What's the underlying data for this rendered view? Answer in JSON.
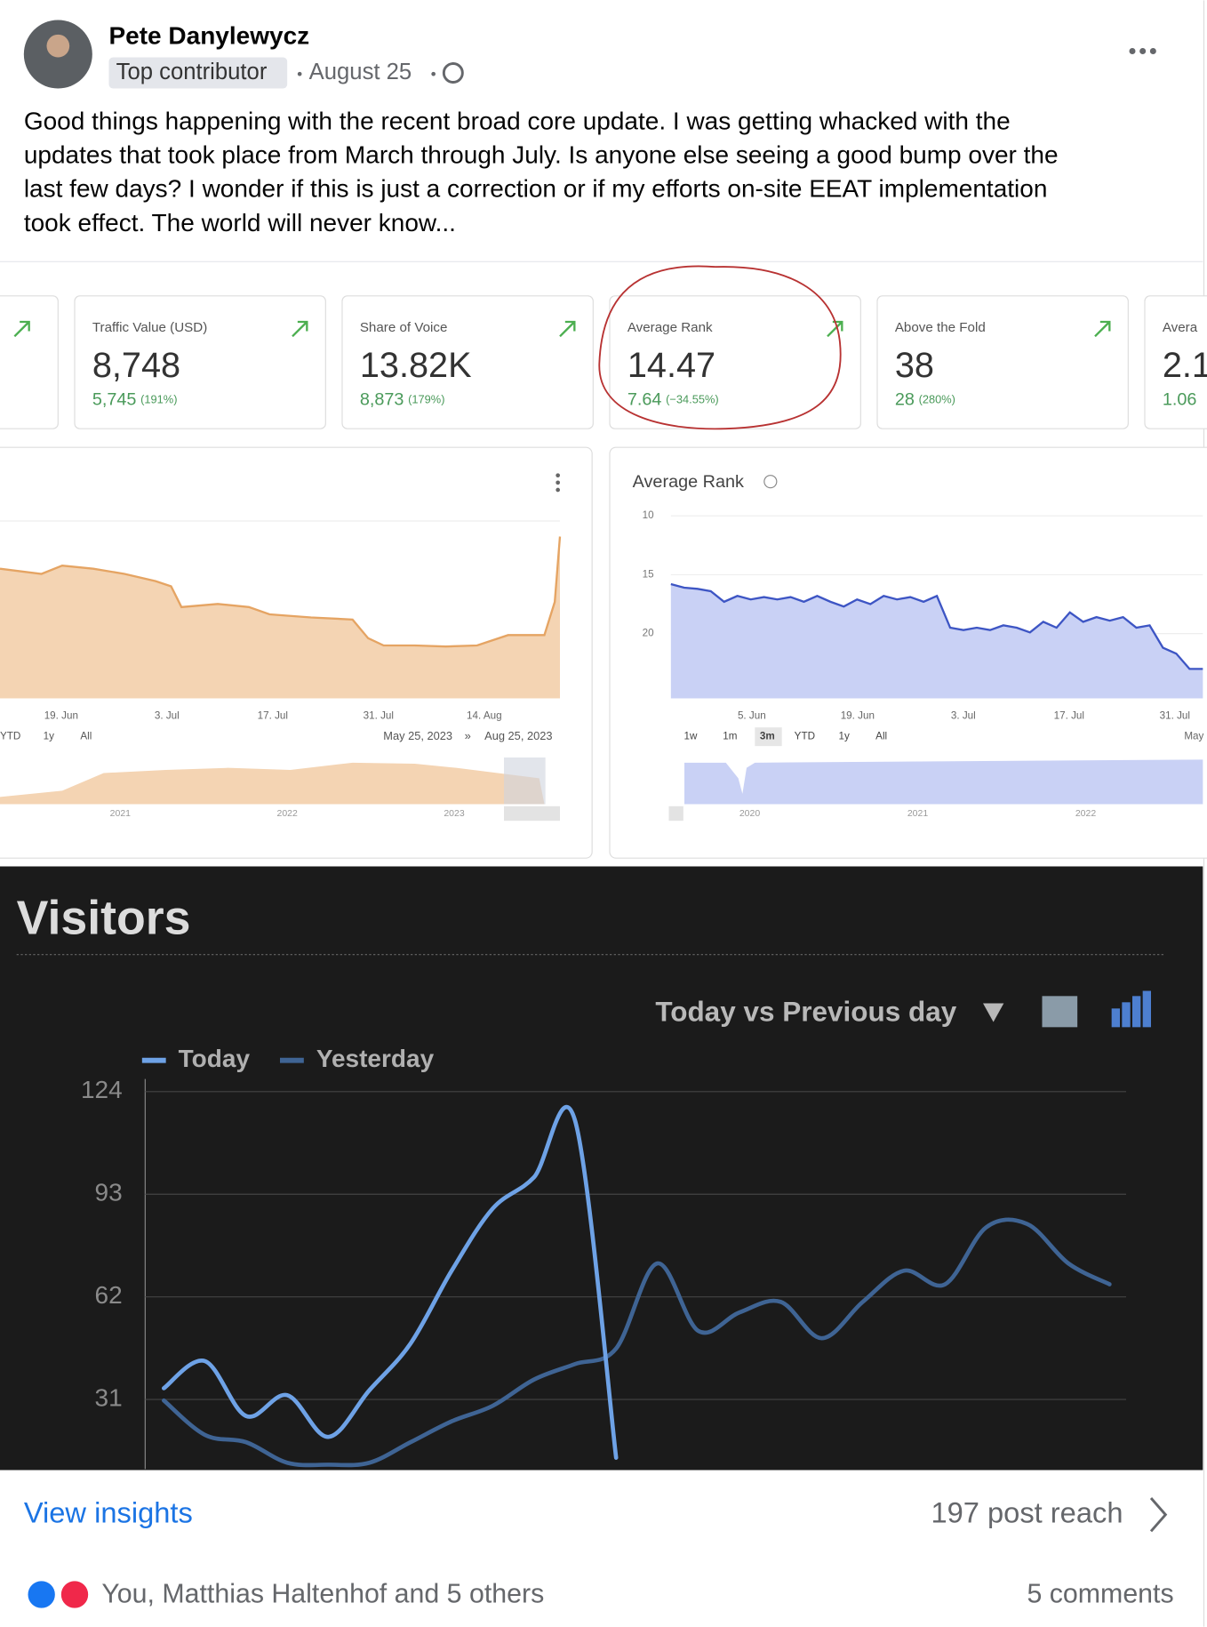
{
  "post": {
    "author": "Pete Danylewycz",
    "badge": "Top contributor",
    "date": "August 25",
    "lines": [
      "Good things happening with the recent broad core update. I was getting whacked with the",
      "updates that took place from March through July. Is anyone else seeing a good bump over the",
      "last few days? I wonder if this is just a correction or if my efforts on-site EEAT implementation",
      "took effect. The world will never know..."
    ]
  },
  "metrics": [
    {
      "label": "Traffic Value (USD)",
      "value": "8,748",
      "change": "5,745",
      "change_pct": "(191%)"
    },
    {
      "label": "Share of Voice",
      "value": "13.82K",
      "change": "8,873",
      "change_pct": "(179%)"
    },
    {
      "label": "Average Rank",
      "value": "14.47",
      "change": "7.64",
      "change_pct": "(−34.55%)"
    },
    {
      "label": "Above the Fold",
      "value": "38",
      "change": "28",
      "change_pct": "(280%)"
    },
    {
      "label": "Avera",
      "value": "2.1",
      "change": "1.06"
    }
  ],
  "left_panel": {
    "x_labels": [
      "19. Jun",
      "3. Jul",
      "17. Jul",
      "31. Jul",
      "14. Aug"
    ],
    "ranges": [
      "YTD",
      "1y",
      "All"
    ],
    "date_from": "May 25, 2023",
    "date_sep": "»",
    "date_to": "Aug 25, 2023",
    "years": [
      "2021",
      "2022",
      "2023"
    ]
  },
  "right_panel": {
    "ranges": [
      "1w",
      "1m",
      "3m",
      "YTD",
      "1y",
      "All"
    ],
    "years": [
      "2020",
      "2021",
      "2022"
    ],
    "clipped_label": "May"
  },
  "chart_data": [
    {
      "type": "area",
      "title": "Average Rank",
      "color": "#3d55c4",
      "fill": "#c9d1f5",
      "x_labels": [
        "5. Jun",
        "19. Jun",
        "3. Jul",
        "17. Jul",
        "31. Jul"
      ],
      "values": [
        15.8,
        16.1,
        16.2,
        16.4,
        17.3,
        16.8,
        17.1,
        16.9,
        17.1,
        16.9,
        17.3,
        16.8,
        17.3,
        17.7,
        17.1,
        17.5,
        16.8,
        17.1,
        16.9,
        17.3,
        16.8,
        19.5,
        19.7,
        19.5,
        19.7,
        19.3,
        19.5,
        19.9,
        19.0,
        19.5,
        18.2,
        19.0,
        18.6,
        18.9,
        18.6,
        19.5,
        19.3,
        21.2,
        21.7,
        23.0,
        23.0
      ],
      "ylim": [
        25.5,
        10
      ],
      "yticks": [
        10,
        15,
        20
      ],
      "grid": true
    },
    {
      "type": "line",
      "title": "Visitors",
      "subtitle": "Today vs Previous day",
      "series": [
        {
          "name": "Today",
          "color": "#6ea2e6",
          "values": [
            34.4,
            42.6,
            26.0,
            32.3,
            19.7,
            33.8,
            47.9,
            69.9,
            88.7,
            98.1,
            115.3,
            13.4,
            null,
            null,
            null,
            null,
            null,
            null,
            null,
            null,
            null,
            null,
            null,
            null
          ]
        },
        {
          "name": "Yesterday",
          "color": "#3f6494",
          "values": [
            30.7,
            20.3,
            18.1,
            11.9,
            11.3,
            11.9,
            18.1,
            24.4,
            29.1,
            37.0,
            41.7,
            46.4,
            72.1,
            51.7,
            57.3,
            60.5,
            49.5,
            60.5,
            69.9,
            65.8,
            83.0,
            84.0,
            72.1,
            65.8
          ]
        }
      ],
      "ylim": [
        10.3,
        127.8
      ],
      "yticks": [
        31,
        62,
        93,
        124
      ],
      "grid": true
    }
  ],
  "footer": {
    "insights": "View insights",
    "reach": "197 post reach",
    "reactions": "You, Matthias Haltenhof and 5 others",
    "comments": "5 comments"
  }
}
